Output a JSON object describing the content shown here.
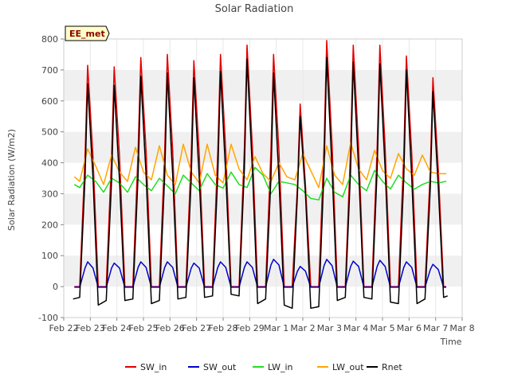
{
  "chart_data": {
    "type": "line",
    "title": "Solar Radiation",
    "xlabel": "Time",
    "ylabel": "Solar Radiation (W/m2)",
    "ylim": [
      -100,
      800
    ],
    "xlim": [
      0,
      15
    ],
    "yticks": [
      -100,
      0,
      100,
      200,
      300,
      400,
      500,
      600,
      700,
      800
    ],
    "xticks": [
      "Feb 22",
      "Feb 23",
      "Feb 24",
      "Feb 25",
      "Feb 26",
      "Feb 27",
      "Feb 28",
      "Feb 29",
      "Mar 1",
      "Mar 2",
      "Mar 3",
      "Mar 4",
      "Mar 5",
      "Mar 6",
      "Mar 7",
      "Mar 8"
    ],
    "grid": true,
    "legend_position": "bottom",
    "badge": "EE_met",
    "series": [
      {
        "name": "SW_in",
        "color": "#e00000",
        "x": [
          0.4,
          0.6,
          0.8,
          0.9,
          1.1,
          1.3,
          1.6,
          1.8,
          1.9,
          2.1,
          2.3,
          2.6,
          2.8,
          2.9,
          3.1,
          3.3,
          3.6,
          3.8,
          3.9,
          4.1,
          4.3,
          4.6,
          4.8,
          4.9,
          5.1,
          5.3,
          5.6,
          5.8,
          5.9,
          6.1,
          6.3,
          6.6,
          6.8,
          6.9,
          7.1,
          7.3,
          7.6,
          7.8,
          7.9,
          8.1,
          8.3,
          8.6,
          8.8,
          8.9,
          9.1,
          9.3,
          9.6,
          9.8,
          9.9,
          10.1,
          10.3,
          10.6,
          10.8,
          10.9,
          11.1,
          11.3,
          11.6,
          11.8,
          11.9,
          12.1,
          12.3,
          12.6,
          12.8,
          12.9,
          13.1,
          13.3,
          13.6,
          13.8,
          13.9,
          14.1,
          14.3,
          14.4
        ],
        "y": [
          0,
          0,
          420,
          715,
          420,
          0,
          0,
          420,
          710,
          420,
          0,
          0,
          440,
          740,
          440,
          0,
          0,
          440,
          750,
          440,
          0,
          0,
          430,
          730,
          430,
          0,
          0,
          440,
          750,
          440,
          0,
          0,
          450,
          780,
          450,
          0,
          0,
          440,
          750,
          440,
          0,
          0,
          330,
          590,
          330,
          0,
          0,
          460,
          795,
          460,
          0,
          0,
          450,
          780,
          450,
          0,
          0,
          450,
          780,
          450,
          0,
          0,
          430,
          745,
          430,
          0,
          0,
          380,
          675,
          380,
          0,
          0
        ]
      },
      {
        "name": "SW_out",
        "color": "#0000cc",
        "x": [
          0.4,
          0.6,
          0.8,
          0.9,
          1.1,
          1.3,
          1.6,
          1.8,
          1.9,
          2.1,
          2.3,
          2.6,
          2.8,
          2.9,
          3.1,
          3.3,
          3.6,
          3.8,
          3.9,
          4.1,
          4.3,
          4.6,
          4.8,
          4.9,
          5.1,
          5.3,
          5.6,
          5.8,
          5.9,
          6.1,
          6.3,
          6.6,
          6.8,
          6.9,
          7.1,
          7.3,
          7.6,
          7.8,
          7.9,
          8.1,
          8.3,
          8.6,
          8.8,
          8.9,
          9.1,
          9.3,
          9.6,
          9.8,
          9.9,
          10.1,
          10.3,
          10.6,
          10.8,
          10.9,
          11.1,
          11.3,
          11.6,
          11.8,
          11.9,
          12.1,
          12.3,
          12.6,
          12.8,
          12.9,
          13.1,
          13.3,
          13.6,
          13.8,
          13.9,
          14.1,
          14.3,
          14.4
        ],
        "y": [
          -2,
          -2,
          60,
          80,
          60,
          -2,
          -2,
          60,
          76,
          60,
          -2,
          -2,
          62,
          80,
          62,
          -2,
          -2,
          62,
          80,
          62,
          -2,
          -2,
          60,
          76,
          60,
          -2,
          -2,
          62,
          80,
          62,
          -2,
          -2,
          62,
          80,
          62,
          -2,
          -2,
          70,
          88,
          70,
          -2,
          -2,
          50,
          65,
          50,
          -2,
          -2,
          68,
          88,
          68,
          -2,
          -2,
          65,
          82,
          65,
          -2,
          -2,
          65,
          85,
          65,
          -2,
          -2,
          62,
          80,
          62,
          -2,
          -2,
          55,
          72,
          55,
          -2,
          -2
        ]
      },
      {
        "name": "LW_in",
        "color": "#22dd22",
        "x": [
          0.4,
          0.6,
          0.9,
          1.2,
          1.5,
          1.8,
          2.1,
          2.4,
          2.7,
          3.0,
          3.3,
          3.6,
          3.9,
          4.2,
          4.5,
          4.8,
          5.1,
          5.4,
          5.7,
          6.0,
          6.3,
          6.6,
          6.9,
          7.2,
          7.5,
          7.8,
          8.1,
          8.4,
          8.7,
          9.0,
          9.3,
          9.6,
          9.9,
          10.2,
          10.5,
          10.8,
          11.1,
          11.4,
          11.7,
          12.0,
          12.3,
          12.6,
          12.9,
          13.2,
          13.5,
          13.8,
          14.1,
          14.4
        ],
        "y": [
          330,
          320,
          360,
          340,
          305,
          350,
          335,
          305,
          355,
          330,
          310,
          350,
          325,
          300,
          360,
          335,
          310,
          365,
          330,
          318,
          370,
          330,
          320,
          385,
          360,
          300,
          340,
          335,
          330,
          310,
          285,
          280,
          350,
          305,
          290,
          360,
          330,
          310,
          375,
          340,
          315,
          360,
          335,
          315,
          330,
          340,
          335,
          340
        ]
      },
      {
        "name": "LW_out",
        "color": "#ffa500",
        "x": [
          0.4,
          0.6,
          0.9,
          1.2,
          1.5,
          1.8,
          2.1,
          2.4,
          2.7,
          3.0,
          3.3,
          3.6,
          3.9,
          4.2,
          4.5,
          4.8,
          5.1,
          5.4,
          5.7,
          6.0,
          6.3,
          6.6,
          6.9,
          7.2,
          7.5,
          7.8,
          8.1,
          8.4,
          8.7,
          9.0,
          9.3,
          9.6,
          9.9,
          10.2,
          10.5,
          10.8,
          11.1,
          11.4,
          11.7,
          12.0,
          12.3,
          12.6,
          12.9,
          13.2,
          13.5,
          13.8,
          14.1,
          14.4
        ],
        "y": [
          355,
          340,
          445,
          390,
          330,
          425,
          370,
          340,
          450,
          370,
          345,
          455,
          360,
          330,
          460,
          370,
          335,
          460,
          360,
          335,
          460,
          380,
          345,
          420,
          365,
          340,
          400,
          355,
          345,
          430,
          375,
          320,
          455,
          360,
          330,
          465,
          380,
          345,
          440,
          375,
          350,
          430,
          380,
          360,
          425,
          370,
          365,
          365
        ]
      },
      {
        "name": "Rnet",
        "color": "#000000",
        "x": [
          0.35,
          0.6,
          0.8,
          0.9,
          1.1,
          1.3,
          1.6,
          1.8,
          1.9,
          2.1,
          2.3,
          2.6,
          2.8,
          2.9,
          3.1,
          3.3,
          3.6,
          3.8,
          3.9,
          4.1,
          4.3,
          4.6,
          4.8,
          4.9,
          5.1,
          5.3,
          5.6,
          5.8,
          5.9,
          6.1,
          6.3,
          6.6,
          6.8,
          6.9,
          7.1,
          7.3,
          7.6,
          7.8,
          7.9,
          8.1,
          8.3,
          8.6,
          8.8,
          8.9,
          9.1,
          9.3,
          9.6,
          9.8,
          9.9,
          10.1,
          10.3,
          10.6,
          10.8,
          10.9,
          11.1,
          11.3,
          11.6,
          11.8,
          11.9,
          12.1,
          12.3,
          12.6,
          12.8,
          12.9,
          13.1,
          13.3,
          13.6,
          13.8,
          13.9,
          14.1,
          14.3,
          14.45
        ],
        "y": [
          -40,
          -35,
          350,
          655,
          350,
          -60,
          -45,
          340,
          650,
          340,
          -45,
          -40,
          360,
          680,
          360,
          -55,
          -45,
          360,
          690,
          360,
          -40,
          -35,
          350,
          675,
          350,
          -35,
          -30,
          360,
          695,
          360,
          -25,
          -30,
          380,
          735,
          380,
          -55,
          -40,
          350,
          690,
          350,
          -60,
          -70,
          300,
          550,
          300,
          -70,
          -65,
          380,
          740,
          380,
          -45,
          -35,
          380,
          725,
          380,
          -35,
          -40,
          380,
          720,
          380,
          -50,
          -55,
          350,
          700,
          350,
          -55,
          -40,
          320,
          630,
          320,
          -35,
          -30
        ]
      }
    ]
  }
}
